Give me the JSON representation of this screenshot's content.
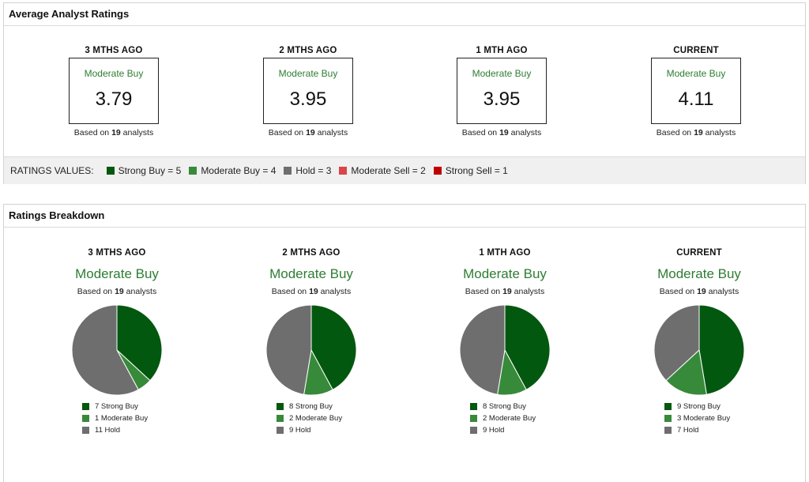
{
  "avg_panel": {
    "title": "Average Analyst Ratings",
    "periods": [
      {
        "label": "3 MTHS AGO",
        "consensus": "Moderate Buy",
        "score": "3.79",
        "based_pre": "Based on ",
        "analysts": "19",
        "based_post": " analysts"
      },
      {
        "label": "2 MTHS AGO",
        "consensus": "Moderate Buy",
        "score": "3.95",
        "based_pre": "Based on ",
        "analysts": "19",
        "based_post": " analysts"
      },
      {
        "label": "1 MTH AGO",
        "consensus": "Moderate Buy",
        "score": "3.95",
        "based_pre": "Based on ",
        "analysts": "19",
        "based_post": " analysts"
      },
      {
        "label": "CURRENT",
        "consensus": "Moderate Buy",
        "score": "4.11",
        "based_pre": "Based on ",
        "analysts": "19",
        "based_post": " analysts"
      }
    ],
    "values_label": "RATINGS VALUES:",
    "values": [
      {
        "text": "Strong Buy = 5",
        "color": "#03580f"
      },
      {
        "text": "Moderate Buy = 4",
        "color": "#378a3a"
      },
      {
        "text": "Hold = 3",
        "color": "#6e6e6e"
      },
      {
        "text": "Moderate Sell = 2",
        "color": "#d9454a"
      },
      {
        "text": "Strong Sell = 1",
        "color": "#c00000"
      }
    ]
  },
  "breakdown_panel": {
    "title": "Ratings Breakdown"
  },
  "chart_data": [
    {
      "type": "pie",
      "title": "3 MTHS AGO",
      "subtitle": "Moderate Buy",
      "note_pre": "Based on ",
      "note_count": "19",
      "note_post": " analysts",
      "categories": [
        "Strong Buy",
        "Moderate Buy",
        "Hold"
      ],
      "values": [
        7,
        1,
        11
      ],
      "legend": [
        "7 Strong Buy",
        "1 Moderate Buy",
        "11 Hold"
      ],
      "colors": [
        "#03580f",
        "#378a3a",
        "#6e6e6e"
      ]
    },
    {
      "type": "pie",
      "title": "2 MTHS AGO",
      "subtitle": "Moderate Buy",
      "note_pre": "Based on ",
      "note_count": "19",
      "note_post": " analysts",
      "categories": [
        "Strong Buy",
        "Moderate Buy",
        "Hold"
      ],
      "values": [
        8,
        2,
        9
      ],
      "legend": [
        "8 Strong Buy",
        "2 Moderate Buy",
        "9 Hold"
      ],
      "colors": [
        "#03580f",
        "#378a3a",
        "#6e6e6e"
      ]
    },
    {
      "type": "pie",
      "title": "1 MTH AGO",
      "subtitle": "Moderate Buy",
      "note_pre": "Based on ",
      "note_count": "19",
      "note_post": " analysts",
      "categories": [
        "Strong Buy",
        "Moderate Buy",
        "Hold"
      ],
      "values": [
        8,
        2,
        9
      ],
      "legend": [
        "8 Strong Buy",
        "2 Moderate Buy",
        "9 Hold"
      ],
      "colors": [
        "#03580f",
        "#378a3a",
        "#6e6e6e"
      ]
    },
    {
      "type": "pie",
      "title": "CURRENT",
      "subtitle": "Moderate Buy",
      "note_pre": "Based on ",
      "note_count": "19",
      "note_post": " analysts",
      "categories": [
        "Strong Buy",
        "Moderate Buy",
        "Hold"
      ],
      "values": [
        9,
        3,
        7
      ],
      "legend": [
        "9 Strong Buy",
        "3 Moderate Buy",
        "7 Hold"
      ],
      "colors": [
        "#03580f",
        "#378a3a",
        "#6e6e6e"
      ]
    }
  ]
}
